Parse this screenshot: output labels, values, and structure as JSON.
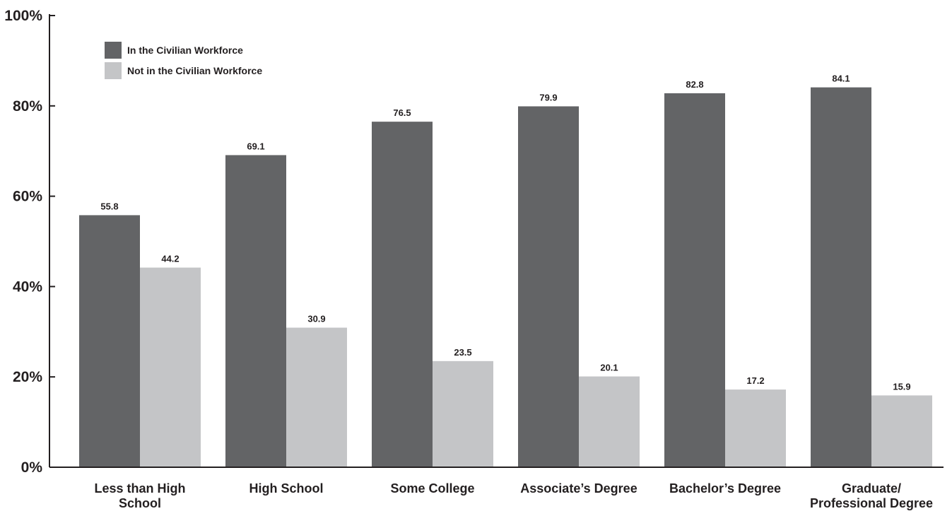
{
  "chart_data": {
    "type": "bar",
    "categories": [
      [
        "Less than High",
        "School"
      ],
      [
        "High School"
      ],
      [
        "Some College"
      ],
      [
        "Associate’s Degree"
      ],
      [
        "Bachelor’s Degree"
      ],
      [
        "Graduate/",
        "Professional Degree"
      ]
    ],
    "series": [
      {
        "name": "In the Civilian Workforce",
        "color": "#636466",
        "values": [
          55.8,
          69.1,
          76.5,
          79.9,
          82.8,
          84.1
        ]
      },
      {
        "name": "Not in the Civilian Workforce",
        "color": "#c4c5c7",
        "values": [
          44.2,
          30.9,
          23.5,
          20.1,
          17.2,
          15.9
        ]
      }
    ],
    "ylim": [
      0,
      100
    ],
    "yticks": [
      0,
      20,
      40,
      60,
      80,
      100
    ],
    "ytick_labels": [
      "0%",
      "20%",
      "40%",
      "60%",
      "80%",
      "100%"
    ],
    "grid": false,
    "legend_position": "top-left",
    "data_labels": true
  }
}
